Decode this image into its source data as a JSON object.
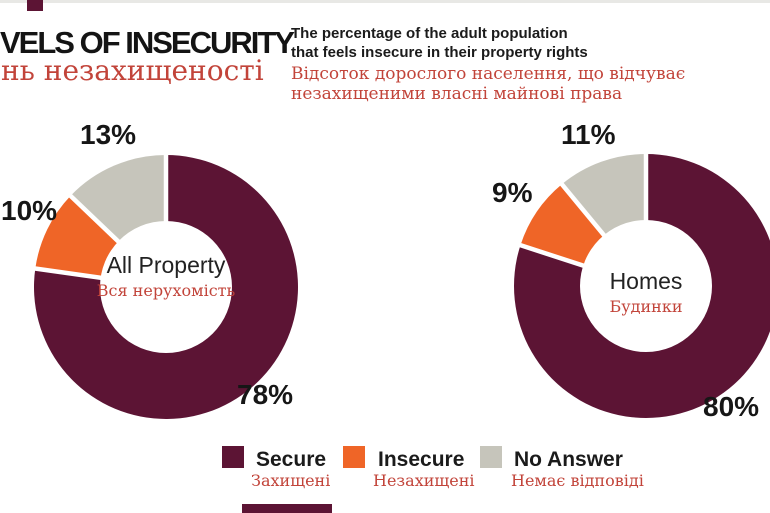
{
  "colors": {
    "secure": "#5c1434",
    "insecure": "#ef6527",
    "no_answer": "#c6c5bb",
    "accent_red": "#c2443a",
    "text_black": "#1b1b1b",
    "background": "#ffffff"
  },
  "header": {
    "title_en": "VELS OF INSECURITY",
    "title_uk": "нь незахищеності",
    "subtitle_en": [
      "The percentage of the adult population",
      "that feels insecure in their property rights"
    ],
    "subtitle_uk": [
      "Відсоток дорослого населення, що відчуває",
      "незахищеними власні майнові права"
    ]
  },
  "chart_data": [
    {
      "type": "pie",
      "style": "donut",
      "direction": "clockwise",
      "start_angle_deg": 0,
      "center_label_en": "All Property",
      "center_label_uk": "Вся нерухомість",
      "segments": [
        {
          "name": "Secure",
          "value": 78,
          "label": "78%"
        },
        {
          "name": "Insecure",
          "value": 10,
          "label": "10%"
        },
        {
          "name": "No Answer",
          "value": 13,
          "label": "13%"
        }
      ]
    },
    {
      "type": "pie",
      "style": "donut",
      "direction": "clockwise",
      "start_angle_deg": 0,
      "center_label_en": "Homes",
      "center_label_uk": "Будинки",
      "segments": [
        {
          "name": "Secure",
          "value": 80,
          "label": "80%"
        },
        {
          "name": "Insecure",
          "value": 9,
          "label": "9%"
        },
        {
          "name": "No Answer",
          "value": 11,
          "label": "11%"
        }
      ]
    }
  ],
  "legend": [
    {
      "label_en": "Secure",
      "label_uk": "Захищені",
      "color": "#5c1434"
    },
    {
      "label_en": "Insecure",
      "label_uk": "Незахищені",
      "color": "#ef6527"
    },
    {
      "label_en": "No Answer",
      "label_uk": "Немає відповіді",
      "color": "#c6c5bb"
    }
  ]
}
